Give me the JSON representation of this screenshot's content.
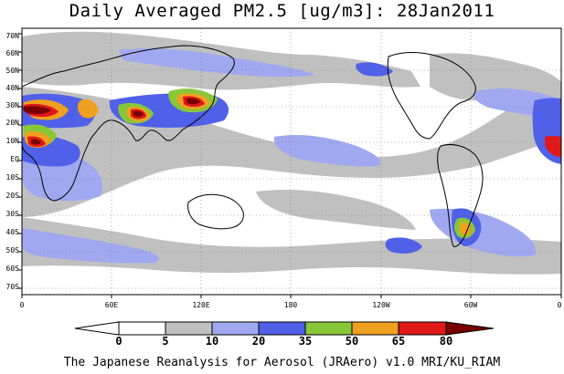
{
  "title": "Daily Averaged PM2.5 [ug/m3]: 28Jan2011",
  "lat_labels": [
    "70N",
    "60N",
    "50N",
    "40N",
    "30N",
    "20N",
    "10N",
    "EQ",
    "10S",
    "20S",
    "30S",
    "40S",
    "50S",
    "60S",
    "70S"
  ],
  "lon_labels": [
    "0",
    "60E",
    "120E",
    "180",
    "120W",
    "60W",
    "0"
  ],
  "colorbar": {
    "labels": [
      "0",
      "5",
      "10",
      "20",
      "35",
      "50",
      "65",
      "80"
    ],
    "colors": [
      "#ffffff",
      "#c0c0c0",
      "#a0a8f0",
      "#5060e8",
      "#88c838",
      "#f0a020",
      "#e01818",
      "#780000"
    ]
  },
  "footer": "The Japanese Reanalysis for Aerosol (JRAero) v1.0 MRI/KU_RIAM"
}
